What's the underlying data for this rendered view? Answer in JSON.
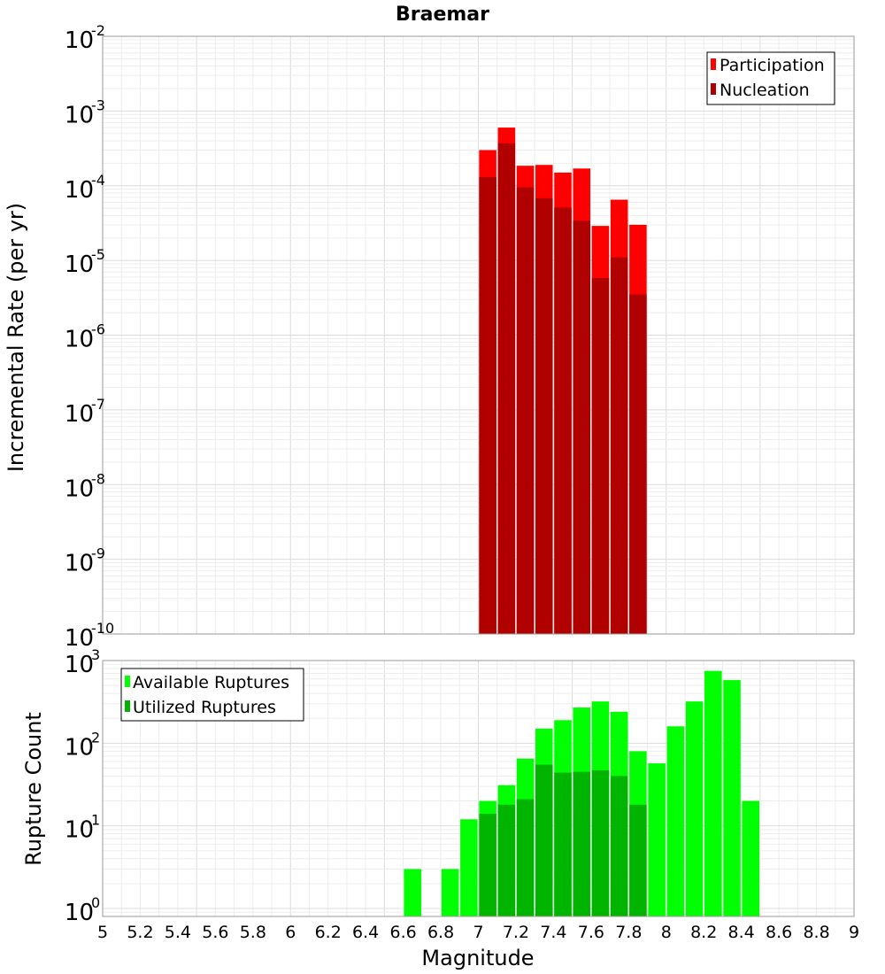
{
  "chart_data": {
    "title": "Braemar",
    "xlabel": "Magnitude",
    "xlim": [
      5,
      9
    ],
    "xticks": [
      "5",
      "5.2",
      "5.4",
      "5.6",
      "5.8",
      "6",
      "6.2",
      "6.4",
      "6.6",
      "6.8",
      "7",
      "7.2",
      "7.4",
      "7.6",
      "7.8",
      "8",
      "8.2",
      "8.4",
      "8.6",
      "8.8",
      "9"
    ],
    "grid": true,
    "panels": [
      {
        "type": "bar",
        "scale": "log",
        "ylabel": "Incremental Rate (per yr)",
        "ylim": [
          1e-10,
          0.01
        ],
        "yticks": [
          {
            "value": 0.01,
            "base": "10",
            "exp": "-2"
          },
          {
            "value": 0.001,
            "base": "10",
            "exp": "-3"
          },
          {
            "value": 0.0001,
            "base": "10",
            "exp": "-4"
          },
          {
            "value": 1e-05,
            "base": "10",
            "exp": "-5"
          },
          {
            "value": 1e-06,
            "base": "10",
            "exp": "-6"
          },
          {
            "value": 1e-07,
            "base": "10",
            "exp": "-7"
          },
          {
            "value": 1e-08,
            "base": "10",
            "exp": "-8"
          },
          {
            "value": 1e-09,
            "base": "10",
            "exp": "-9"
          },
          {
            "value": 1e-10,
            "base": "10",
            "exp": "-10"
          }
        ],
        "legend_position": "top-right",
        "x": [
          7.05,
          7.15,
          7.25,
          7.35,
          7.45,
          7.55,
          7.65,
          7.75,
          7.85
        ],
        "series": [
          {
            "name": "Participation",
            "color": "#ff0000",
            "values": [
              0.0003,
              0.0006,
              0.000185,
              0.00019,
              0.00015,
              0.00017,
              2.9e-05,
              6.5e-05,
              3e-05
            ]
          },
          {
            "name": "Nucleation",
            "color": "#b00000",
            "values": [
              0.00013,
              0.00037,
              9.5e-05,
              6.8e-05,
              5.1e-05,
              3.4e-05,
              5.8e-06,
              1.1e-05,
              3.5e-06
            ]
          }
        ]
      },
      {
        "type": "bar",
        "scale": "log",
        "ylabel": "Rupture Count",
        "ylim": [
          0.8,
          1000
        ],
        "yticks": [
          {
            "value": 1000,
            "base": "10",
            "exp": "3"
          },
          {
            "value": 100,
            "base": "10",
            "exp": "2"
          },
          {
            "value": 10,
            "base": "10",
            "exp": "1"
          },
          {
            "value": 1,
            "base": "10",
            "exp": "0"
          }
        ],
        "legend_position": "top-left",
        "x": [
          6.65,
          6.85,
          6.95,
          7.05,
          7.15,
          7.25,
          7.35,
          7.45,
          7.55,
          7.65,
          7.75,
          7.85,
          7.95,
          8.05,
          8.15,
          8.25,
          8.35,
          8.45
        ],
        "series": [
          {
            "name": "Available Ruptures",
            "color": "#00ff00",
            "values": [
              3,
              3,
              12,
              20,
              31,
              65,
              150,
              190,
              270,
              320,
              240,
              80,
              57,
              160,
              320,
              750,
              580,
              20
            ]
          },
          {
            "name": "Utilized Ruptures",
            "color": "#00b400",
            "values": [
              0,
              0,
              0,
              14,
              18,
              21,
              55,
              44,
              45,
              47,
              40,
              18,
              0,
              0,
              0,
              0,
              0,
              0
            ]
          }
        ]
      }
    ]
  }
}
